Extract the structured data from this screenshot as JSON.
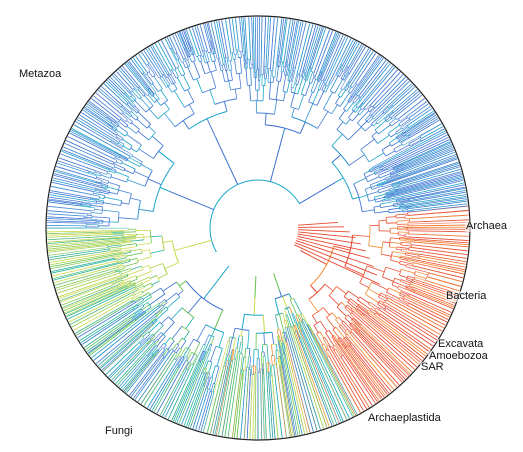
{
  "figure": {
    "labels": {
      "metazoa": "Metazoa",
      "archaea": "Archaea",
      "bacteria": "Bacteria",
      "excavata": "Excavata",
      "amoebozoa": "Amoebozoa",
      "sar": "SAR",
      "archaeplastida": "Archaeplastida",
      "fungi": "Fungi"
    },
    "colors": {
      "outer_ring": "#222222",
      "metazoa_blue": "#3b6fd1",
      "cyan": "#19a7c8",
      "teal": "#27b39a",
      "green": "#62c24a",
      "yellow_green": "#c9d84c",
      "orange": "#f28a2d",
      "red": "#e7462f"
    }
  }
}
